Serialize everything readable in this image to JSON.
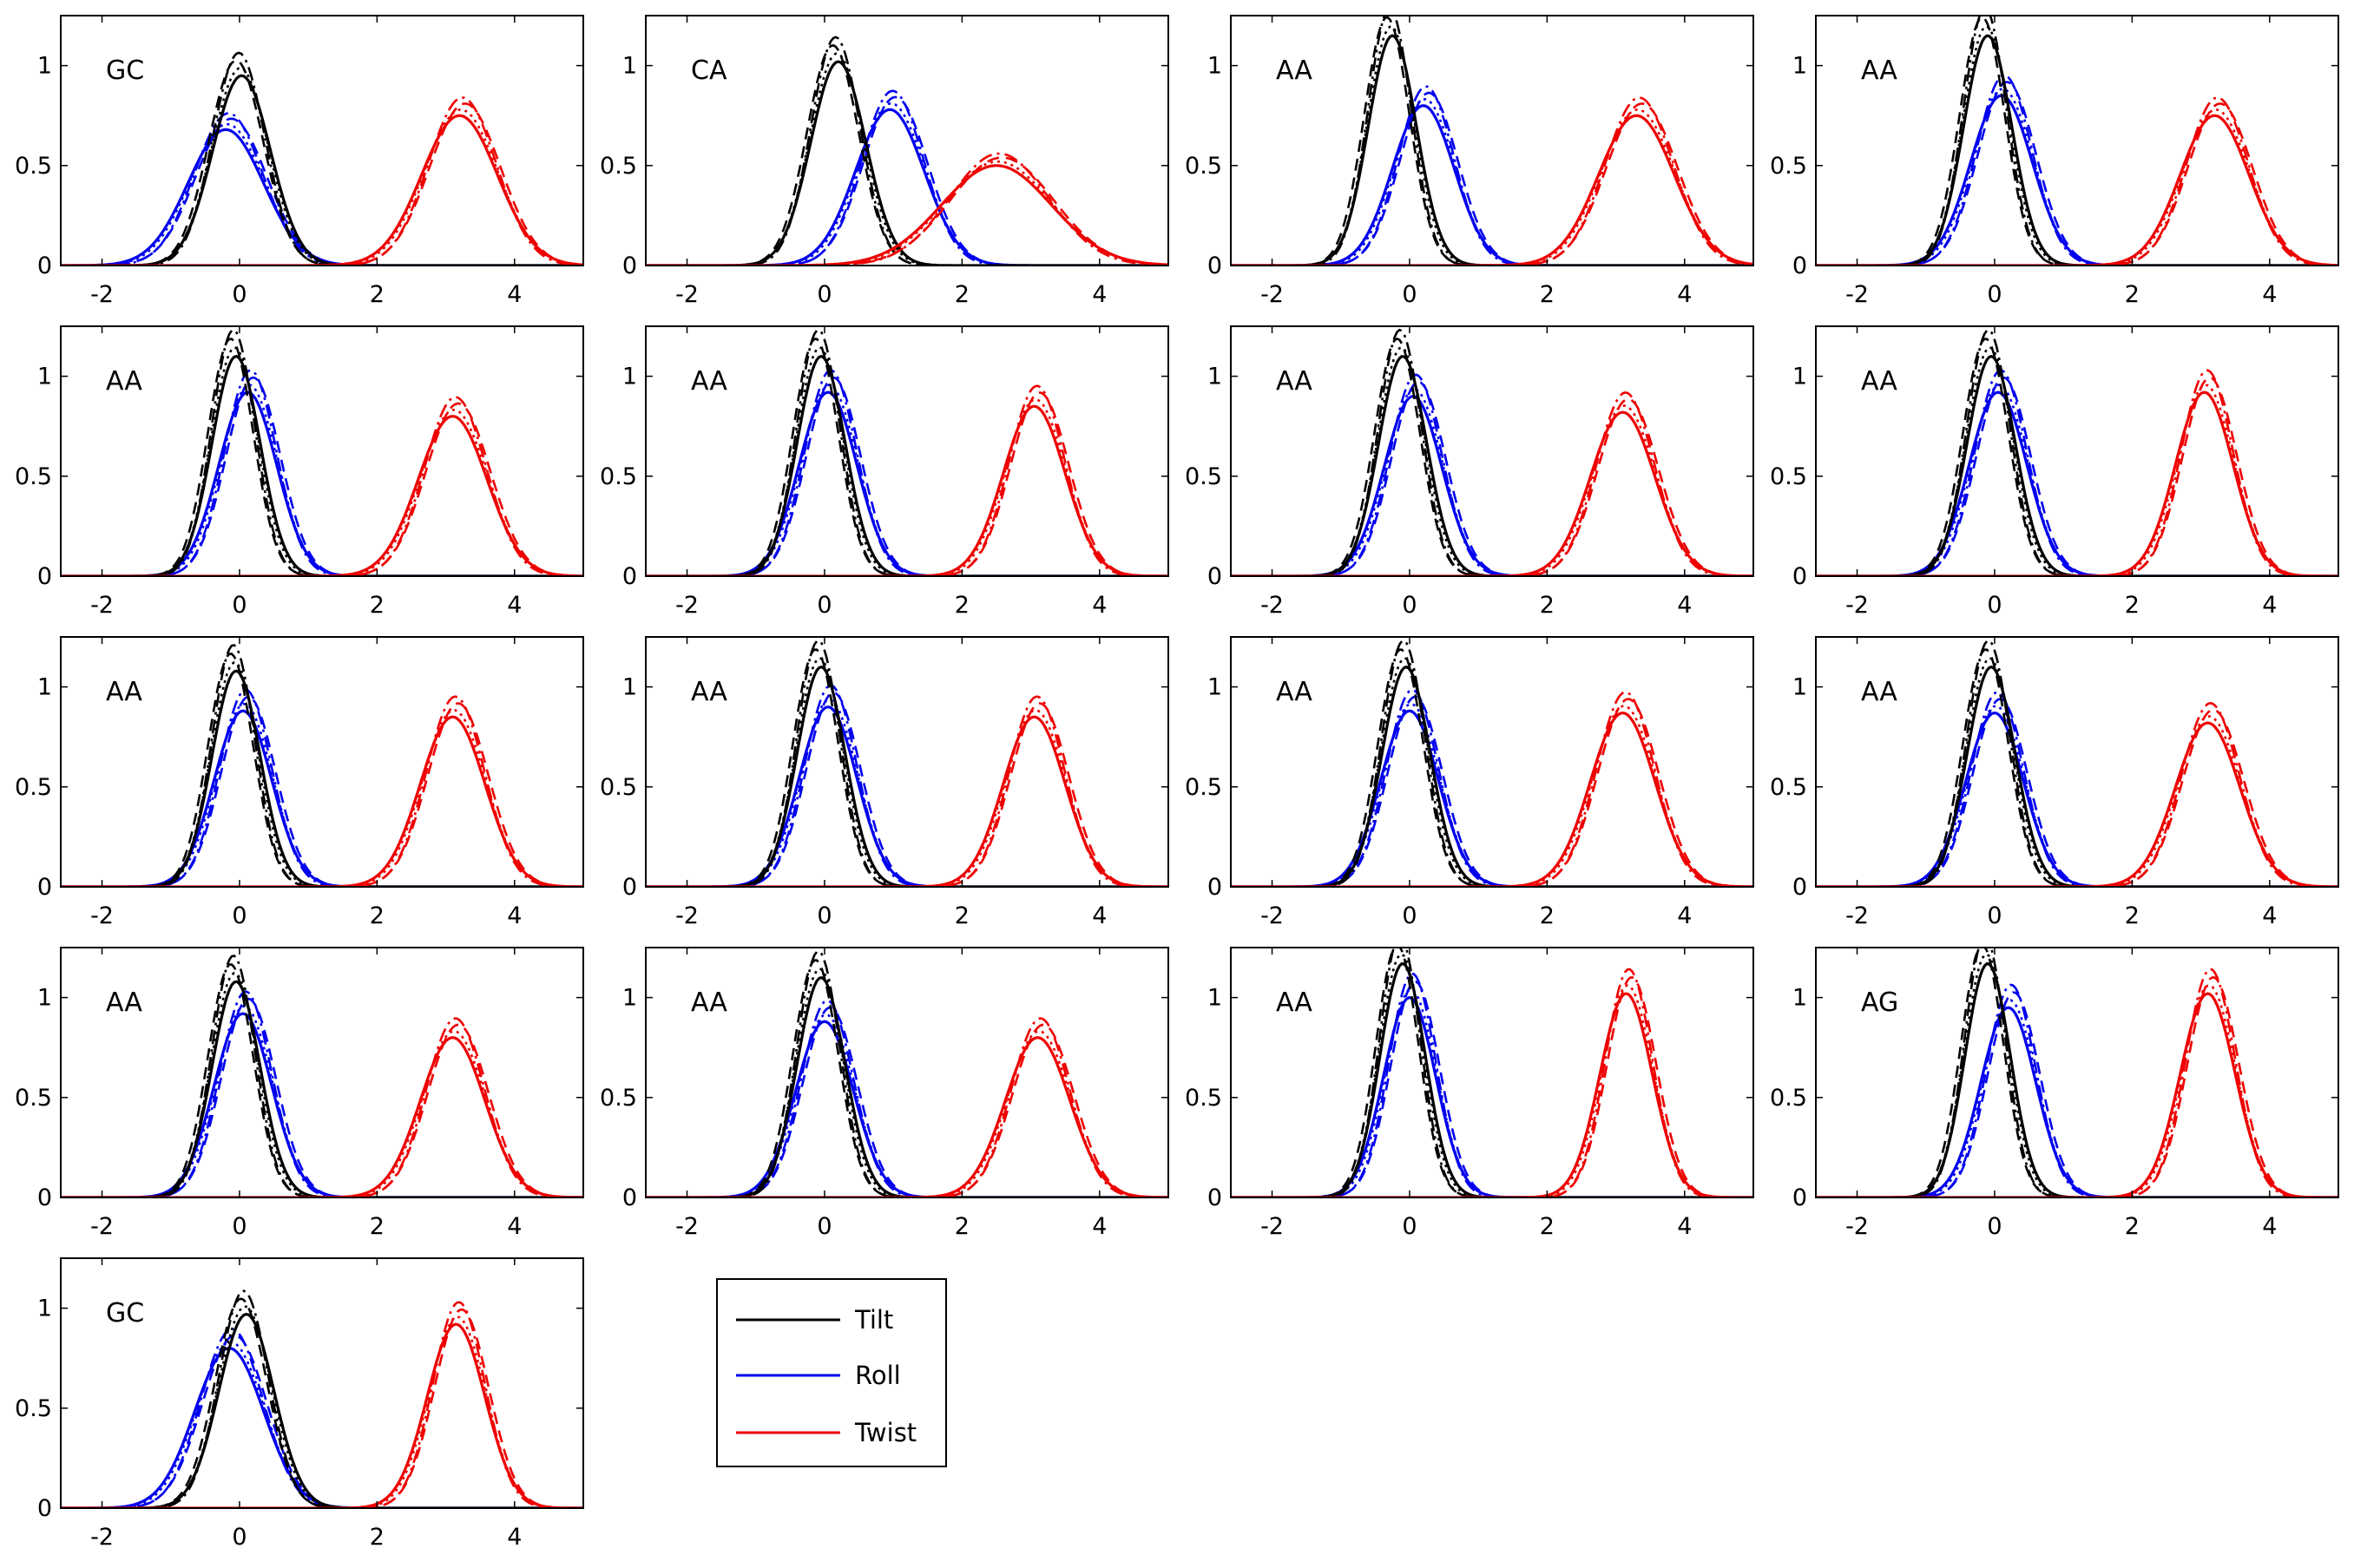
{
  "legend": {
    "items": [
      {
        "label": "Tilt",
        "color": "#000000"
      },
      {
        "label": "Roll",
        "color": "#0000ee"
      },
      {
        "label": "Twist",
        "color": "#ee0000"
      }
    ]
  },
  "chart_data": {
    "type": "line",
    "title": "",
    "xlabel": "",
    "ylabel": "",
    "xlim": [
      -2.6,
      5
    ],
    "ylim": [
      0,
      1.25
    ],
    "xticks": [
      -2,
      0,
      2,
      4
    ],
    "yticks": [
      0,
      0.5,
      1
    ],
    "ytick_labels": [
      "0",
      "0.5",
      "1"
    ],
    "grid": false,
    "legend_position": "separate-box-bottom-middle",
    "line_styles_per_series": [
      "solid",
      "dashed",
      "dash-dot",
      "dotted"
    ],
    "panels": [
      {
        "label": "GC",
        "tilt": {
          "mu": 0.03,
          "peak": 0.95,
          "sigma": 0.42
        },
        "roll": {
          "mu": -0.2,
          "peak": 0.68,
          "sigma": 0.55
        },
        "twist": {
          "mu": 3.2,
          "peak": 0.75,
          "sigma": 0.55
        }
      },
      {
        "label": "CA",
        "tilt": {
          "mu": 0.2,
          "peak": 1.02,
          "sigma": 0.4
        },
        "roll": {
          "mu": 0.95,
          "peak": 0.78,
          "sigma": 0.5
        },
        "twist": {
          "mu": 2.5,
          "peak": 0.5,
          "sigma": 0.8
        }
      },
      {
        "label": "AA",
        "tilt": {
          "mu": -0.25,
          "peak": 1.15,
          "sigma": 0.35
        },
        "roll": {
          "mu": 0.2,
          "peak": 0.8,
          "sigma": 0.45
        },
        "twist": {
          "mu": 3.3,
          "peak": 0.75,
          "sigma": 0.55
        }
      },
      {
        "label": "AA",
        "tilt": {
          "mu": -0.1,
          "peak": 1.15,
          "sigma": 0.35
        },
        "roll": {
          "mu": 0.1,
          "peak": 0.85,
          "sigma": 0.45
        },
        "twist": {
          "mu": 3.2,
          "peak": 0.75,
          "sigma": 0.5
        }
      },
      {
        "label": "AA",
        "tilt": {
          "mu": -0.05,
          "peak": 1.1,
          "sigma": 0.35
        },
        "roll": {
          "mu": 0.12,
          "peak": 0.92,
          "sigma": 0.42
        },
        "twist": {
          "mu": 3.1,
          "peak": 0.8,
          "sigma": 0.5
        }
      },
      {
        "label": "AA",
        "tilt": {
          "mu": -0.05,
          "peak": 1.1,
          "sigma": 0.35
        },
        "roll": {
          "mu": 0.05,
          "peak": 0.92,
          "sigma": 0.42
        },
        "twist": {
          "mu": 3.05,
          "peak": 0.85,
          "sigma": 0.45
        }
      },
      {
        "label": "AA",
        "tilt": {
          "mu": -0.1,
          "peak": 1.1,
          "sigma": 0.35
        },
        "roll": {
          "mu": 0.05,
          "peak": 0.9,
          "sigma": 0.42
        },
        "twist": {
          "mu": 3.1,
          "peak": 0.82,
          "sigma": 0.47
        }
      },
      {
        "label": "AA",
        "tilt": {
          "mu": -0.05,
          "peak": 1.1,
          "sigma": 0.35
        },
        "roll": {
          "mu": 0.05,
          "peak": 0.92,
          "sigma": 0.42
        },
        "twist": {
          "mu": 3.05,
          "peak": 0.92,
          "sigma": 0.42
        }
      },
      {
        "label": "AA",
        "tilt": {
          "mu": -0.05,
          "peak": 1.08,
          "sigma": 0.35
        },
        "roll": {
          "mu": 0.05,
          "peak": 0.88,
          "sigma": 0.42
        },
        "twist": {
          "mu": 3.1,
          "peak": 0.85,
          "sigma": 0.47
        }
      },
      {
        "label": "AA",
        "tilt": {
          "mu": -0.05,
          "peak": 1.1,
          "sigma": 0.35
        },
        "roll": {
          "mu": 0.05,
          "peak": 0.9,
          "sigma": 0.42
        },
        "twist": {
          "mu": 3.05,
          "peak": 0.85,
          "sigma": 0.45
        }
      },
      {
        "label": "AA",
        "tilt": {
          "mu": -0.05,
          "peak": 1.1,
          "sigma": 0.35
        },
        "roll": {
          "mu": 0.0,
          "peak": 0.88,
          "sigma": 0.42
        },
        "twist": {
          "mu": 3.1,
          "peak": 0.87,
          "sigma": 0.47
        }
      },
      {
        "label": "AA",
        "tilt": {
          "mu": -0.05,
          "peak": 1.1,
          "sigma": 0.35
        },
        "roll": {
          "mu": 0.0,
          "peak": 0.87,
          "sigma": 0.42
        },
        "twist": {
          "mu": 3.1,
          "peak": 0.82,
          "sigma": 0.47
        }
      },
      {
        "label": "AA",
        "tilt": {
          "mu": -0.05,
          "peak": 1.08,
          "sigma": 0.35
        },
        "roll": {
          "mu": 0.05,
          "peak": 0.92,
          "sigma": 0.42
        },
        "twist": {
          "mu": 3.1,
          "peak": 0.8,
          "sigma": 0.47
        }
      },
      {
        "label": "AA",
        "tilt": {
          "mu": -0.05,
          "peak": 1.1,
          "sigma": 0.35
        },
        "roll": {
          "mu": 0.0,
          "peak": 0.88,
          "sigma": 0.42
        },
        "twist": {
          "mu": 3.1,
          "peak": 0.8,
          "sigma": 0.47
        }
      },
      {
        "label": "AA",
        "tilt": {
          "mu": -0.1,
          "peak": 1.17,
          "sigma": 0.33
        },
        "roll": {
          "mu": 0.0,
          "peak": 1.0,
          "sigma": 0.38
        },
        "twist": {
          "mu": 3.15,
          "peak": 1.02,
          "sigma": 0.38
        }
      },
      {
        "label": "AG",
        "tilt": {
          "mu": -0.1,
          "peak": 1.17,
          "sigma": 0.33
        },
        "roll": {
          "mu": 0.2,
          "peak": 0.95,
          "sigma": 0.4
        },
        "twist": {
          "mu": 3.1,
          "peak": 1.02,
          "sigma": 0.4
        }
      },
      {
        "label": "GC",
        "tilt": {
          "mu": 0.1,
          "peak": 0.97,
          "sigma": 0.4
        },
        "roll": {
          "mu": -0.15,
          "peak": 0.8,
          "sigma": 0.5
        },
        "twist": {
          "mu": 3.15,
          "peak": 0.92,
          "sigma": 0.42
        }
      }
    ]
  }
}
